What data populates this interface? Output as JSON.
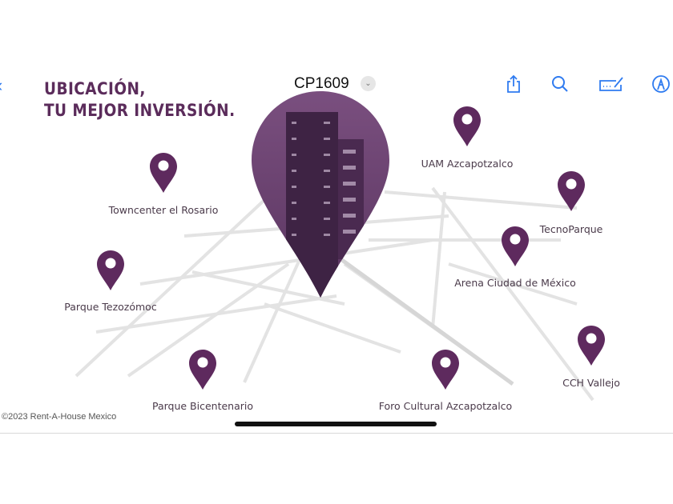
{
  "toolbar": {
    "doc_title": "CP1609",
    "icons": [
      "back-icon",
      "share-icon",
      "search-icon",
      "markup-signature-icon",
      "markup-pen-icon",
      "chevron-down-icon"
    ]
  },
  "poster": {
    "title_line1": "UBICACIÓN,",
    "title_line2": "TU MEJOR INVERSIÓN.",
    "pin_color": "#5e2a5e",
    "locations": [
      {
        "name": "Towncenter el Rosario"
      },
      {
        "name": "UAM Azcapotzalco"
      },
      {
        "name": "TecnoParque"
      },
      {
        "name": "Arena Ciudad de México"
      },
      {
        "name": "Parque Tezozómoc"
      },
      {
        "name": "CCH Vallejo"
      },
      {
        "name": "Parque Bicentenario"
      },
      {
        "name": "Foro Cultural Azcapotzalco"
      }
    ]
  },
  "watermark": "©2023 Rent-A-House Mexico"
}
